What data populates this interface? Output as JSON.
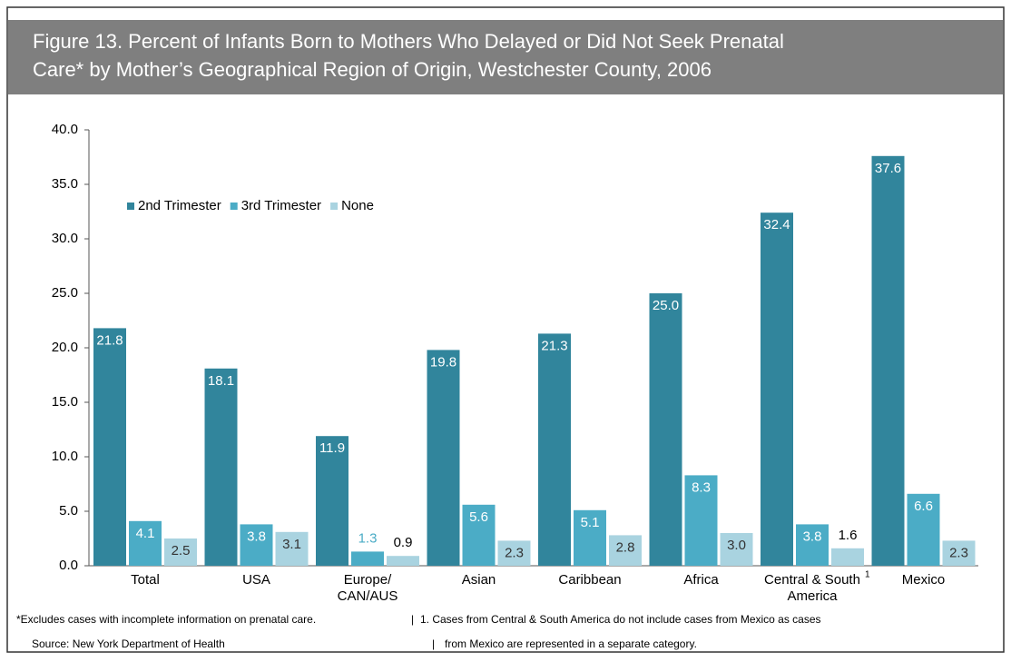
{
  "chart_data": {
    "type": "bar",
    "title": [
      "Figure 13. Percent of Infants Born to Mothers Who Delayed or Did Not Seek Prenatal",
      "Care* by Mother’s Geographical Region of Origin, Westchester County, 2006"
    ],
    "categories": [
      "Total",
      "USA",
      "Europe/\nCAN/AUS",
      "Asian",
      "Caribbean",
      "Africa",
      "Central & South\nAmerica",
      "Mexico"
    ],
    "category_marks": [
      null,
      null,
      null,
      null,
      null,
      null,
      "1",
      null
    ],
    "series": [
      {
        "name": "2nd Trimester",
        "color": "#31859c",
        "label_color": "#ffffff",
        "values": [
          21.8,
          18.1,
          11.9,
          19.8,
          21.3,
          25.0,
          32.4,
          37.6
        ],
        "value_labels": [
          "21.8",
          "18.1",
          "11.9",
          "19.8",
          "21.3",
          "25.0",
          "32.4",
          "37.6"
        ]
      },
      {
        "name": "3rd Trimester",
        "color": "#4bacc6",
        "label_color": "#ffffff",
        "values": [
          4.1,
          3.8,
          1.3,
          5.6,
          5.1,
          8.3,
          3.8,
          6.6
        ],
        "value_labels": [
          "4.1",
          "3.8",
          "1.3",
          "5.6",
          "5.1",
          "8.3",
          "3.8",
          "6.6"
        ]
      },
      {
        "name": "None",
        "color": "#a9d3e0",
        "label_color": "#333333",
        "values": [
          2.5,
          3.1,
          0.9,
          2.3,
          2.8,
          3.0,
          1.6,
          2.3
        ],
        "value_labels": [
          "2.5",
          "3.1",
          "0.9",
          "2.3",
          "2.8",
          "3.0",
          "1.6",
          "2.3"
        ]
      }
    ],
    "ylim": [
      0,
      40
    ],
    "yticks": [
      {
        "value": 0,
        "label": "0.0"
      },
      {
        "value": 5,
        "label": "5.0"
      },
      {
        "value": 10,
        "label": "10.0"
      },
      {
        "value": 15,
        "label": "15.0"
      },
      {
        "value": 20,
        "label": "20.0"
      },
      {
        "value": 25,
        "label": "25.0"
      },
      {
        "value": 30,
        "label": "30.0"
      },
      {
        "value": 35,
        "label": "35.0"
      },
      {
        "value": 40,
        "label": "40.0"
      }
    ],
    "legend": "upper left",
    "footnotes": [
      "*Excludes cases with incomplete information on prenatal care.",
      "1. Cases from Central & South America do not include cases from Mexico as cases",
      "Source: New York Department of Health",
      "from Mexico are represented in a separate category."
    ],
    "footnote_separator": "|"
  }
}
